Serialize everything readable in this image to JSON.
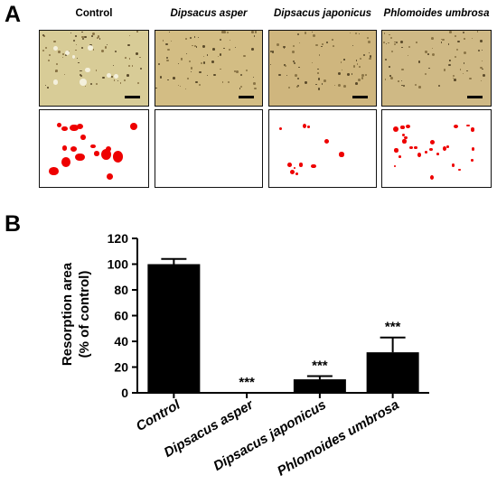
{
  "panel_a": {
    "label": "A",
    "columns": [
      {
        "title": "Control",
        "italic": false,
        "spots": 17,
        "tint": "#d8cc97"
      },
      {
        "title": "Dipsacus asper",
        "italic": true,
        "spots": 0,
        "tint": "#d3bd84"
      },
      {
        "title": "Dipsacus japonicus",
        "italic": true,
        "spots": 11,
        "tint": "#cfb67e"
      },
      {
        "title": "Phlomoides umbrosa",
        "italic": true,
        "spots": 26,
        "tint": "#cfb985"
      }
    ]
  },
  "panel_b": {
    "label": "B"
  },
  "colors": {
    "spot": "#ee0000",
    "bar": "#000000"
  },
  "chart_data": {
    "type": "bar",
    "categories": [
      "Control",
      "Dipsacus asper",
      "Dipsacus japonicus",
      "Phlomoides umbrosa"
    ],
    "values": [
      100,
      0,
      10.5,
      31.5
    ],
    "errors": [
      4,
      0,
      2.5,
      11.5
    ],
    "annotations": [
      "",
      "***",
      "***",
      "***"
    ],
    "ylabel_line1": "Resorption area",
    "ylabel_line2": "(% of control)",
    "ylim": [
      0,
      120
    ],
    "yticks": [
      "0",
      "20",
      "40",
      "60",
      "80",
      "100",
      "120"
    ],
    "grid": false
  }
}
